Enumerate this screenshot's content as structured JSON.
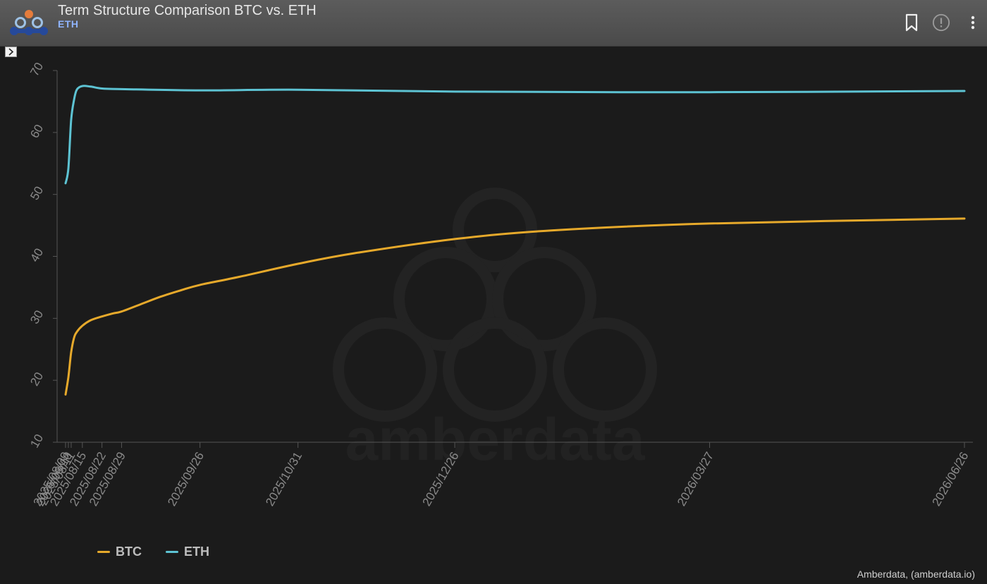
{
  "header": {
    "title": "Term Structure Comparison BTC vs. ETH",
    "subtitle": "ETH",
    "icons": [
      "logo-icon",
      "bookmark-icon",
      "info-icon",
      "more-vertical-icon"
    ]
  },
  "watermark": "amberdata",
  "credit": "Amberdata, (amberdata.io)",
  "colors": {
    "BTC": "#e6a92b",
    "ETH": "#5dc3d3",
    "background": "#1b1b1b",
    "header": "#555555"
  },
  "chart_data": {
    "type": "line",
    "title": "Term Structure Comparison BTC vs. ETH",
    "xlabel": "",
    "ylabel": "",
    "ylim": [
      10,
      70
    ],
    "yticks": [
      10,
      20,
      30,
      40,
      50,
      60,
      70
    ],
    "xticks": [
      "2025/08/09",
      "2025/08/10",
      "2025/08/11",
      "2025/08/15",
      "2025/08/22",
      "2025/08/29",
      "2025/09/26",
      "2025/10/31",
      "2025/12/26",
      "2026/03/27",
      "2026/06/26"
    ],
    "xtick_labels": [
      "2025/08/09",
      "2025/08/10",
      "2025/08/11",
      "2025/08/15",
      "2025/08/22",
      "2025/08/29",
      "2025/09/26",
      "2025/10/31",
      "2025/12/26",
      "2026/03/27",
      "2026/06/26"
    ],
    "grid": false,
    "legend": "bottom-left",
    "series": [
      {
        "name": "BTC",
        "x": [
          "2025/08/09",
          "2025/08/10",
          "2025/08/11",
          "2025/08/12",
          "2025/08/13",
          "2025/08/15",
          "2025/08/18",
          "2025/08/22",
          "2025/08/26",
          "2025/08/29",
          "2025/09/05",
          "2025/09/12",
          "2025/09/19",
          "2025/09/26",
          "2025/10/10",
          "2025/10/31",
          "2025/11/20",
          "2025/12/26",
          "2026/01/30",
          "2026/03/27",
          "2026/06/26"
        ],
        "values": [
          17.7,
          20.5,
          24.5,
          26.8,
          27.8,
          28.8,
          29.7,
          30.3,
          30.8,
          31.1,
          32.3,
          33.5,
          34.5,
          35.4,
          36.7,
          38.8,
          40.5,
          42.8,
          44.2,
          45.3,
          46.1
        ]
      },
      {
        "name": "ETH",
        "x": [
          "2025/08/09",
          "2025/08/10",
          "2025/08/11",
          "2025/08/12",
          "2025/08/13",
          "2025/08/15",
          "2025/08/18",
          "2025/08/22",
          "2025/08/29",
          "2025/09/26",
          "2025/10/31",
          "2025/12/26",
          "2026/03/27",
          "2026/06/26"
        ],
        "values": [
          51.8,
          54.2,
          62.0,
          65.2,
          66.9,
          67.5,
          67.4,
          67.1,
          67.0,
          66.8,
          66.9,
          66.6,
          66.5,
          66.7
        ]
      }
    ]
  },
  "legend_items": [
    {
      "label": "BTC",
      "color": "#e6a92b"
    },
    {
      "label": "ETH",
      "color": "#5dc3d3"
    }
  ]
}
